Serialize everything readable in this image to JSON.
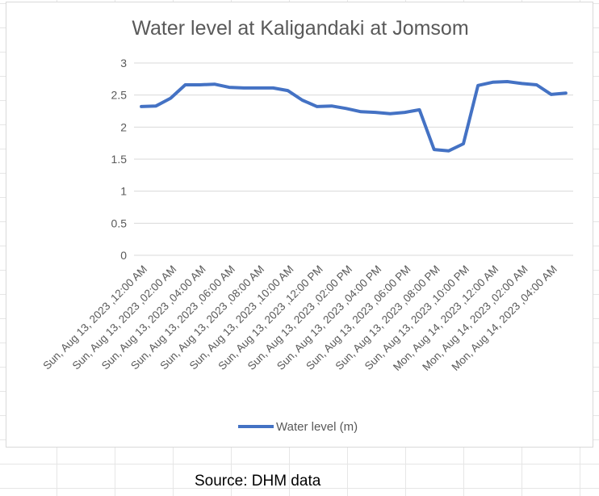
{
  "chart_data": {
    "type": "line",
    "title": "Water level at Kaligandaki at Jomsom",
    "xlabel": "",
    "ylabel": "",
    "ylim": [
      0,
      3
    ],
    "yticks": [
      "0",
      "0.5",
      "1",
      "1.5",
      "2",
      "2.5",
      "3"
    ],
    "ytick_values": [
      0,
      0.5,
      1,
      1.5,
      2,
      2.5,
      3
    ],
    "grid": true,
    "legend": "bottom",
    "x_tick_labels": [
      "Sun, Aug 13, 2023 ,12:00 AM",
      "Sun, Aug 13, 2023 ,02:00 AM",
      "Sun, Aug 13, 2023 ,04:00 AM",
      "Sun, Aug 13, 2023 ,06:00 AM",
      "Sun, Aug 13, 2023 ,08:00 AM",
      "Sun, Aug 13, 2023 ,10:00 AM",
      "Sun, Aug 13, 2023 ,12:00 PM",
      "Sun, Aug 13, 2023 ,02:00 PM",
      "Sun, Aug 13, 2023 ,04:00 PM",
      "Sun, Aug 13, 2023 ,06:00 PM",
      "Sun, Aug 13, 2023 ,08:00 PM",
      "Sun, Aug 13, 2023 ,10:00 PM",
      "Mon, Aug 14, 2023 ,12:00 AM",
      "Mon, Aug 14, 2023 ,02:00 AM",
      "Mon, Aug 14, 2023 ,04:00 AM"
    ],
    "series": [
      {
        "name": "Water level (m)",
        "color": "#4472c4",
        "values": [
          2.32,
          2.33,
          2.45,
          2.66,
          2.66,
          2.67,
          2.62,
          2.61,
          2.61,
          2.61,
          2.57,
          2.42,
          2.32,
          2.33,
          2.29,
          2.24,
          2.23,
          2.21,
          2.23,
          2.27,
          1.65,
          1.63,
          1.74,
          2.65,
          2.7,
          2.71,
          2.68,
          2.66,
          2.51,
          2.53
        ]
      }
    ]
  },
  "source_note": "Source: DHM data"
}
